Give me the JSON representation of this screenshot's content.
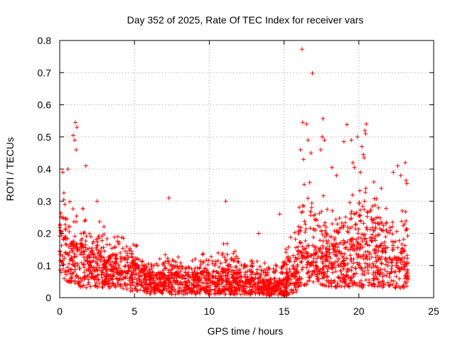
{
  "chart_data": {
    "type": "scatter",
    "title": "Day 352 of 2025, Rate Of TEC Index for receiver vars",
    "xlabel": "GPS time / hours",
    "ylabel": "ROTI / TECUs",
    "xlim": [
      0,
      25
    ],
    "ylim": [
      0,
      0.8
    ],
    "xticks": [
      0,
      5,
      10,
      15,
      20,
      25
    ],
    "yticks": [
      0,
      0.1,
      0.2,
      0.3,
      0.4,
      0.5,
      0.6,
      0.7,
      0.8
    ],
    "xtick_labels": [
      "0",
      "5",
      "10",
      "15",
      "20",
      "25"
    ],
    "ytick_labels": [
      "0",
      "0.1",
      "0.2",
      "0.3",
      "0.4",
      "0.5",
      "0.6",
      "0.7",
      "0.8"
    ],
    "grid": true,
    "marker": "+",
    "color": "#ff0000",
    "data_extent_hours": [
      0,
      23.3
    ],
    "envelope": {
      "x": [
        0,
        0.5,
        1,
        1.5,
        2,
        2.5,
        3,
        3.5,
        4,
        4.5,
        5,
        5.5,
        6,
        6.5,
        7,
        7.5,
        8,
        8.5,
        9,
        9.5,
        10,
        10.5,
        11,
        11.5,
        12,
        12.5,
        13,
        13.5,
        14,
        14.5,
        15,
        15.5,
        16,
        16.5,
        17,
        17.5,
        18,
        18.5,
        19,
        19.5,
        20,
        20.5,
        21,
        21.5,
        22,
        22.5,
        23,
        23.3
      ],
      "low": [
        0.07,
        0.05,
        0.04,
        0.03,
        0.03,
        0.03,
        0.03,
        0.03,
        0.03,
        0.02,
        0.02,
        0.02,
        0.01,
        0.01,
        0.01,
        0.01,
        0.01,
        0.01,
        0.01,
        0.01,
        0.01,
        0.01,
        0.01,
        0.01,
        0.01,
        0.01,
        0.01,
        0.01,
        0.005,
        0.005,
        0.005,
        0.01,
        0.02,
        0.03,
        0.05,
        0.04,
        0.03,
        0.03,
        0.03,
        0.03,
        0.03,
        0.03,
        0.03,
        0.03,
        0.03,
        0.03,
        0.03,
        0.03
      ],
      "mid": [
        0.18,
        0.15,
        0.14,
        0.13,
        0.12,
        0.12,
        0.11,
        0.11,
        0.1,
        0.1,
        0.09,
        0.07,
        0.06,
        0.06,
        0.06,
        0.06,
        0.06,
        0.06,
        0.06,
        0.06,
        0.06,
        0.06,
        0.07,
        0.06,
        0.06,
        0.05,
        0.05,
        0.05,
        0.04,
        0.04,
        0.05,
        0.07,
        0.13,
        0.14,
        0.12,
        0.15,
        0.14,
        0.13,
        0.13,
        0.14,
        0.15,
        0.15,
        0.14,
        0.13,
        0.12,
        0.12,
        0.12,
        0.1
      ],
      "high": [
        0.35,
        0.32,
        0.3,
        0.28,
        0.26,
        0.25,
        0.22,
        0.2,
        0.2,
        0.2,
        0.18,
        0.14,
        0.13,
        0.12,
        0.14,
        0.14,
        0.13,
        0.13,
        0.15,
        0.14,
        0.13,
        0.14,
        0.18,
        0.16,
        0.14,
        0.12,
        0.12,
        0.12,
        0.12,
        0.12,
        0.14,
        0.2,
        0.33,
        0.38,
        0.33,
        0.33,
        0.3,
        0.3,
        0.3,
        0.33,
        0.34,
        0.34,
        0.33,
        0.3,
        0.28,
        0.28,
        0.28,
        0.25
      ]
    },
    "notable_points": [
      {
        "x": 0.9,
        "y": 0.505
      },
      {
        "x": 1.0,
        "y": 0.49
      },
      {
        "x": 1.1,
        "y": 0.46
      },
      {
        "x": 1.05,
        "y": 0.545
      },
      {
        "x": 1.15,
        "y": 0.53
      },
      {
        "x": 1.75,
        "y": 0.41
      },
      {
        "x": 0.55,
        "y": 0.4
      },
      {
        "x": 0.2,
        "y": 0.39
      },
      {
        "x": 2.5,
        "y": 0.3
      },
      {
        "x": 7.3,
        "y": 0.31
      },
      {
        "x": 11.1,
        "y": 0.3
      },
      {
        "x": 13.3,
        "y": 0.2
      },
      {
        "x": 14.7,
        "y": 0.26
      },
      {
        "x": 16.2,
        "y": 0.773
      },
      {
        "x": 16.9,
        "y": 0.698
      },
      {
        "x": 16.5,
        "y": 0.54
      },
      {
        "x": 16.25,
        "y": 0.545
      },
      {
        "x": 16.6,
        "y": 0.49
      },
      {
        "x": 16.1,
        "y": 0.46
      },
      {
        "x": 16.3,
        "y": 0.43
      },
      {
        "x": 16.8,
        "y": 0.45
      },
      {
        "x": 17.6,
        "y": 0.557
      },
      {
        "x": 17.55,
        "y": 0.5
      },
      {
        "x": 17.7,
        "y": 0.49
      },
      {
        "x": 17.45,
        "y": 0.46
      },
      {
        "x": 18.2,
        "y": 0.405
      },
      {
        "x": 18.5,
        "y": 0.38
      },
      {
        "x": 19.2,
        "y": 0.538
      },
      {
        "x": 19.5,
        "y": 0.49
      },
      {
        "x": 19.0,
        "y": 0.485
      },
      {
        "x": 19.9,
        "y": 0.5
      },
      {
        "x": 19.6,
        "y": 0.42
      },
      {
        "x": 19.7,
        "y": 0.405
      },
      {
        "x": 20.2,
        "y": 0.47
      },
      {
        "x": 20.3,
        "y": 0.445
      },
      {
        "x": 20.35,
        "y": 0.435
      },
      {
        "x": 20.4,
        "y": 0.52
      },
      {
        "x": 20.45,
        "y": 0.51
      },
      {
        "x": 20.5,
        "y": 0.54
      },
      {
        "x": 20.1,
        "y": 0.39
      },
      {
        "x": 21.0,
        "y": 0.36
      },
      {
        "x": 21.5,
        "y": 0.34
      },
      {
        "x": 22.6,
        "y": 0.41
      },
      {
        "x": 22.3,
        "y": 0.39
      },
      {
        "x": 23.1,
        "y": 0.42
      },
      {
        "x": 23.15,
        "y": 0.365
      },
      {
        "x": 23.2,
        "y": 0.355
      },
      {
        "x": 22.8,
        "y": 0.38
      }
    ]
  }
}
